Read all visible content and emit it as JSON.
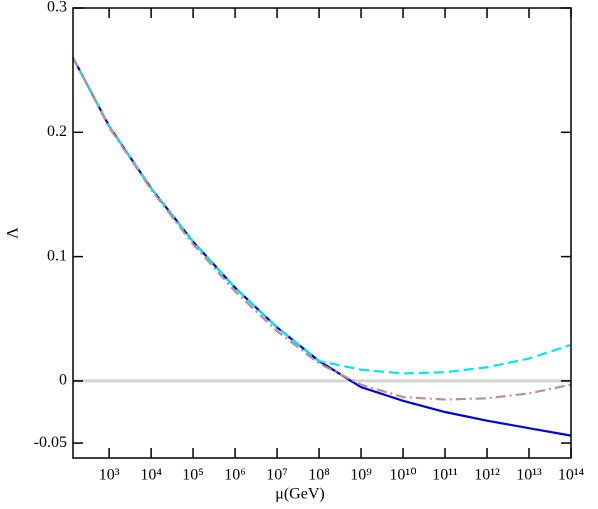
{
  "chart_data": {
    "type": "line",
    "x_label": "μ(GeV)",
    "y_label": "Λ",
    "log_x": true,
    "x": [
      138,
      1000,
      10000,
      100000,
      1000000,
      10000000,
      100000000,
      1000000000,
      10000000000,
      100000000000,
      1000000000000,
      10000000000000,
      100000000000000
    ],
    "series": [
      {
        "color": "#0000e0",
        "dash": "solid",
        "values": [
          0.26,
          0.205,
          0.155,
          0.112,
          0.075,
          0.043,
          0.016,
          -0.005,
          -0.016,
          -0.025,
          -0.032,
          -0.038,
          -0.044
        ]
      },
      {
        "color": "#00e5ee",
        "dash": "dashed",
        "values": [
          0.26,
          0.205,
          0.155,
          0.112,
          0.075,
          0.043,
          0.016,
          0.009,
          0.006,
          0.007,
          0.011,
          0.018,
          0.029
        ]
      },
      {
        "color": "#bc8f8f",
        "dash": "dashdot",
        "values": [
          0.26,
          0.204,
          0.154,
          0.11,
          0.072,
          0.04,
          0.014,
          -0.003,
          -0.013,
          -0.015,
          -0.014,
          -0.01,
          -0.003
        ]
      }
    ],
    "hline": {
      "value": 0,
      "color": "#d3d3d3"
    },
    "xlim": [
      138,
      100000000000000
    ],
    "ylim": [
      -0.062,
      0.3
    ],
    "xticks": [
      {
        "value": 1000,
        "label": "10³"
      },
      {
        "value": 10000,
        "label": "10⁴"
      },
      {
        "value": 100000,
        "label": "10⁵"
      },
      {
        "value": 1000000,
        "label": "10⁶"
      },
      {
        "value": 10000000,
        "label": "10⁷"
      },
      {
        "value": 100000000,
        "label": "10⁸"
      },
      {
        "value": 1000000000,
        "label": "10⁹"
      },
      {
        "value": 10000000000,
        "label": "10¹⁰"
      },
      {
        "value": 100000000000,
        "label": "10¹¹"
      },
      {
        "value": 1000000000000,
        "label": "10¹²"
      },
      {
        "value": 10000000000000,
        "label": "10¹³"
      },
      {
        "value": 100000000000000,
        "label": "10¹⁴"
      }
    ],
    "yticks": [
      -0.05,
      0,
      0.1,
      0.2,
      0.3
    ]
  }
}
